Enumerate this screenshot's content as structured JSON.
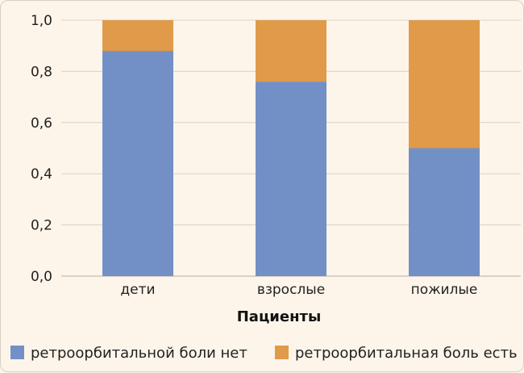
{
  "chart_data": {
    "type": "bar",
    "stacked": true,
    "normalized": true,
    "categories": [
      "дети",
      "взрослые",
      "пожилые"
    ],
    "series": [
      {
        "name": "ретроорбитальной боли нет",
        "values": [
          0.88,
          0.76,
          0.5
        ],
        "color": "#7390c6"
      },
      {
        "name": "ретроорбитальная боль есть",
        "values": [
          0.12,
          0.24,
          0.5
        ],
        "color": "#e09a4a"
      }
    ],
    "xlabel": "Пациенты",
    "ylabel": "",
    "ylim": [
      0,
      1.0
    ],
    "yticks": [
      "0,0",
      "0,2",
      "0,4",
      "0,6",
      "0,8",
      "1,0"
    ],
    "grid": true,
    "legend_position": "bottom"
  }
}
